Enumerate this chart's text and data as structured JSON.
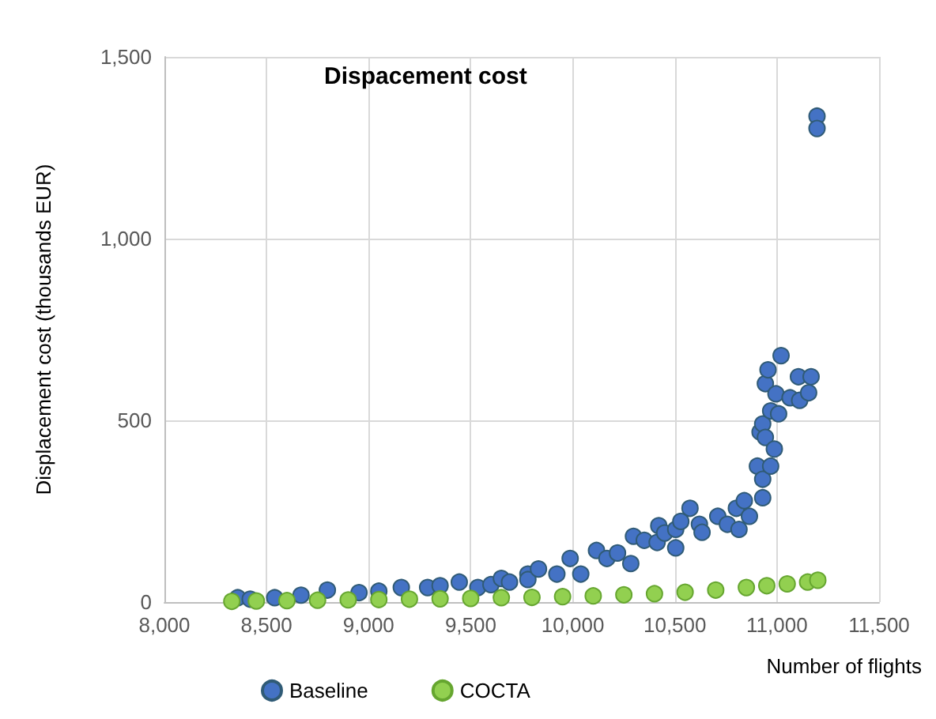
{
  "chart_data": {
    "type": "scatter",
    "title": "Dispacement cost",
    "xlabel": "Number of flights",
    "ylabel": "Displacement cost (thousands EUR)",
    "xlim": [
      8000,
      11500
    ],
    "xticks": [
      {
        "value": 8000,
        "label": "8,000"
      },
      {
        "value": 8500,
        "label": "8,500"
      },
      {
        "value": 9000,
        "label": "9,000"
      },
      {
        "value": 9500,
        "label": "9,500"
      },
      {
        "value": 10000,
        "label": "10,000"
      },
      {
        "value": 10500,
        "label": "10,500"
      },
      {
        "value": 11000,
        "label": "11,000"
      },
      {
        "value": 11500,
        "label": "11,500"
      }
    ],
    "ylim": [
      0,
      1500
    ],
    "yticks": [
      0,
      500,
      {
        "value": 1000,
        "label": "1,000"
      },
      {
        "value": 1500,
        "label": "1,500"
      }
    ],
    "grid": true,
    "legend": "bottom",
    "marker": "circle",
    "series": [
      {
        "name": "Baseline",
        "color": "#4472c4",
        "x": [
          8359,
          8420,
          8540,
          8669,
          8798,
          8953,
          9050,
          9160,
          9289,
          9350,
          9444,
          9535,
          9599,
          9650,
          9690,
          9780,
          9780,
          9832,
          9922,
          9987,
          10039,
          10116,
          10167,
          10219,
          10284,
          10297,
          10350,
          10413,
          10421,
          10450,
          10504,
          10504,
          10529,
          10574,
          10620,
          10633,
          10710,
          10757,
          10801,
          10814,
          10840,
          10865,
          10904,
          10917,
          10930,
          10930,
          10930,
          10943,
          10943,
          10956,
          10969,
          10969,
          10987,
          10995,
          11008,
          11020,
          11064,
          11105,
          11111,
          11155,
          11167,
          11196,
          11196
        ],
        "values": [
          12,
          8,
          12,
          19,
          33,
          26,
          30,
          40,
          40,
          45,
          55,
          40,
          48,
          65,
          55,
          77,
          62,
          91,
          77,
          120,
          77,
          142,
          120,
          135,
          106,
          181,
          170,
          164,
          210,
          190,
          200,
          149,
          222,
          258,
          214,
          192,
          236,
          214,
          258,
          200,
          279,
          236,
          374,
          468,
          490,
          338,
          287,
          453,
          601,
          639,
          526,
          374,
          421,
          573,
          518,
          678,
          562,
          620,
          555,
          576,
          620,
          1337,
          1303
        ]
      },
      {
        "name": "COCTA",
        "color": "#92d050",
        "x": [
          8330,
          8450,
          8600,
          8750,
          8900,
          9050,
          9200,
          9350,
          9500,
          9650,
          9800,
          9950,
          10100,
          10250,
          10400,
          10550,
          10700,
          10850,
          10950,
          11050,
          11150,
          11200
        ],
        "values": [
          2,
          3,
          4,
          5,
          6,
          7,
          8,
          9,
          10,
          12,
          13,
          15,
          17,
          20,
          23,
          27,
          33,
          40,
          45,
          50,
          55,
          60
        ]
      }
    ]
  }
}
